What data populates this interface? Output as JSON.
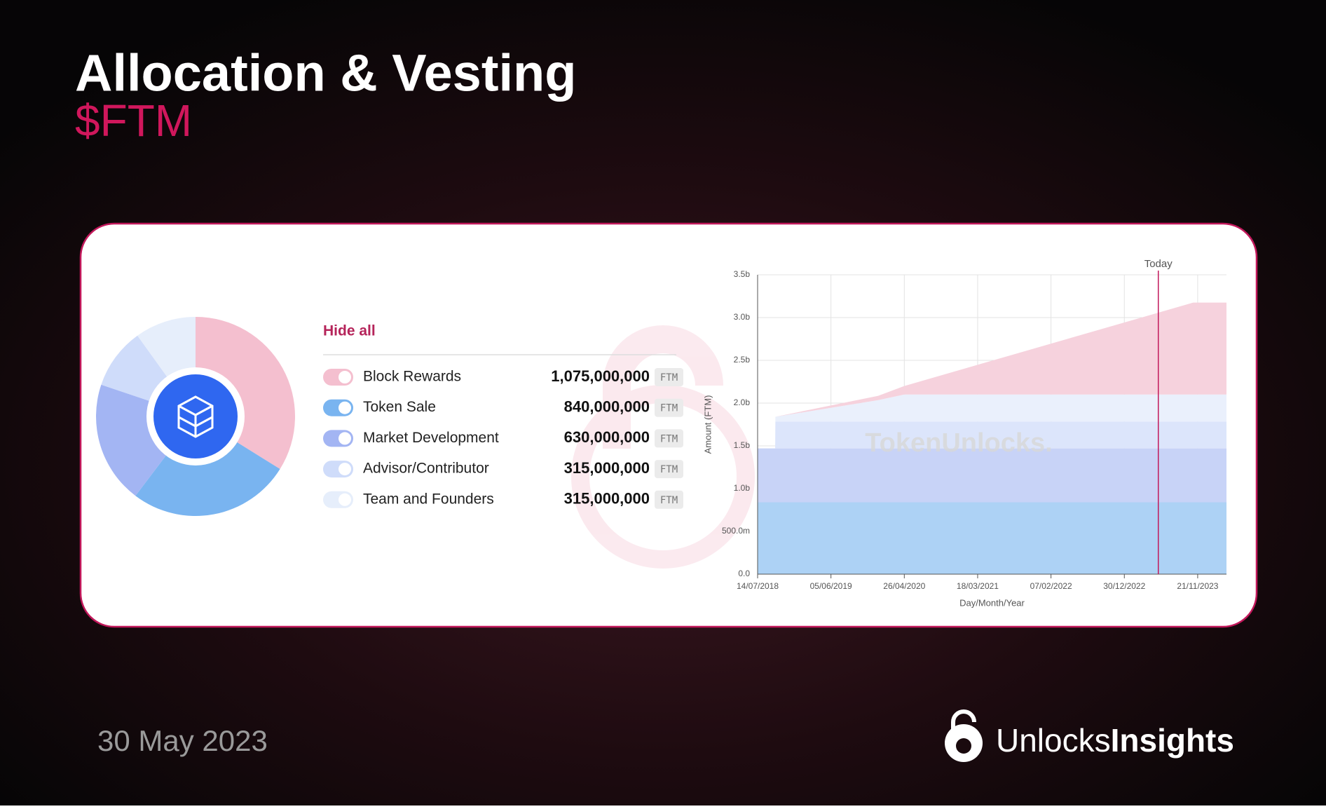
{
  "header": {
    "title": "Allocation & Vesting",
    "subtitle": "$FTM"
  },
  "footer": {
    "date": "30 May 2023",
    "brand_light": "Unlocks",
    "brand_bold": "Insights"
  },
  "chart_data": [
    {
      "type": "pie",
      "legend_action": "Hide all",
      "unit": "FTM",
      "categories": [
        "Block Rewards",
        "Token Sale",
        "Market Development",
        "Advisor/Contributor",
        "Team and Founders"
      ],
      "values": [
        1075000000,
        840000000,
        630000000,
        315000000,
        315000000
      ],
      "value_labels": [
        "1,075,000,000",
        "840,000,000",
        "630,000,000",
        "315,000,000",
        "315,000,000"
      ],
      "colors": [
        "#f4bfcf",
        "#79b4f0",
        "#a3b5f3",
        "#cfdcfa",
        "#e6eefb"
      ]
    },
    {
      "type": "area",
      "stacked": true,
      "grid": true,
      "watermark": "TokenUnlocks.",
      "xlabel": "Day/Month/Year",
      "ylabel": "Amount (FTM)",
      "x": [
        "2018-07-14",
        "2018-09-30",
        "2018-10-01",
        "2020-01-01",
        "2020-04-26",
        "2023-11-01",
        "2024-03-28"
      ],
      "xlim": [
        "2018-07-14",
        "2024-03-28"
      ],
      "xticks": [
        {
          "value": "2018-07-14",
          "label": "14/07/2018"
        },
        {
          "value": "2019-06-05",
          "label": "05/06/2019"
        },
        {
          "value": "2020-04-26",
          "label": "26/04/2020"
        },
        {
          "value": "2021-03-18",
          "label": "18/03/2021"
        },
        {
          "value": "2022-02-07",
          "label": "07/02/2022"
        },
        {
          "value": "2022-12-30",
          "label": "30/12/2022"
        },
        {
          "value": "2023-11-21",
          "label": "21/11/2023"
        }
      ],
      "ylim": [
        0,
        3500000000
      ],
      "yticks": [
        {
          "value": 0,
          "label": "0.0"
        },
        {
          "value": 500000000,
          "label": "500.0m"
        },
        {
          "value": 1000000000,
          "label": "1.0b"
        },
        {
          "value": 1500000000,
          "label": "1.5b"
        },
        {
          "value": 2000000000,
          "label": "2.0b"
        },
        {
          "value": 2500000000,
          "label": "2.5b"
        },
        {
          "value": 3000000000,
          "label": "3.0b"
        },
        {
          "value": 3500000000,
          "label": "3.5b"
        }
      ],
      "series": [
        {
          "color": "#add2f5",
          "values": [
            840000000,
            840000000,
            840000000,
            840000000,
            840000000,
            840000000,
            840000000
          ]
        },
        {
          "color": "#c8d3f7",
          "values": [
            630000000,
            630000000,
            630000000,
            630000000,
            630000000,
            630000000,
            630000000
          ]
        },
        {
          "color": "#dce5fb",
          "values": [
            0,
            0,
            315000000,
            315000000,
            315000000,
            315000000,
            315000000
          ]
        },
        {
          "color": "#eaf0fc",
          "values": [
            0,
            0,
            55000000,
            250000000,
            315000000,
            315000000,
            315000000
          ]
        },
        {
          "color": "#f6d2dd",
          "values": [
            0,
            0,
            0,
            50000000,
            100000000,
            1075000000,
            1075000000
          ]
        }
      ],
      "annotations": [
        {
          "label": "Today",
          "x": "2023-05-30"
        }
      ]
    }
  ]
}
